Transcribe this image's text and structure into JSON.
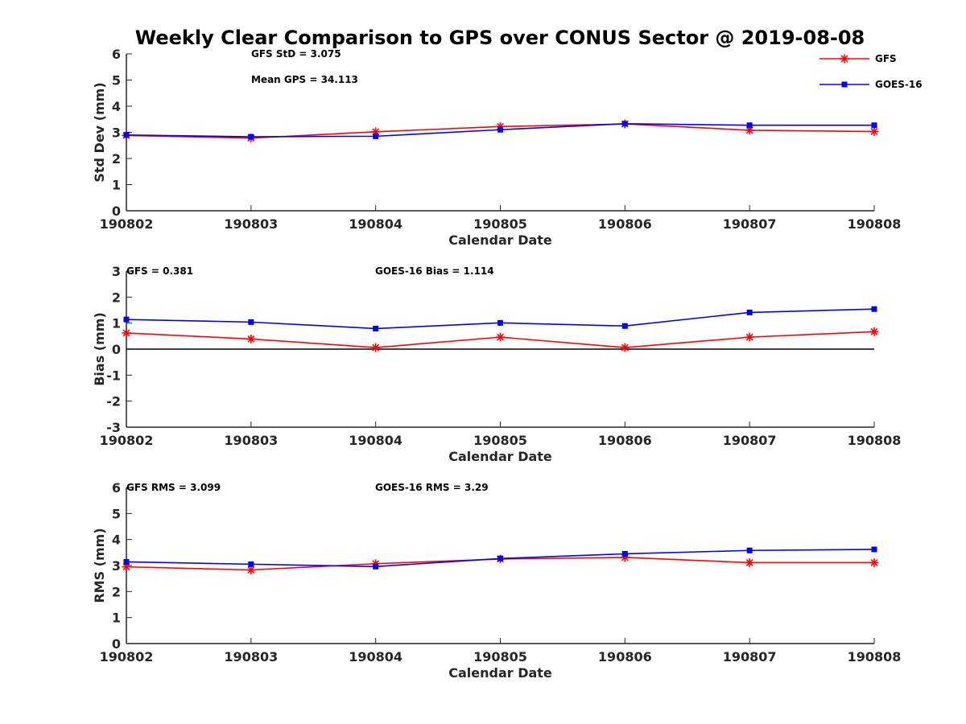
{
  "title": "Weekly Clear Comparison to GPS over CONUS Sector @ 2019-08-08",
  "colors": {
    "GFS": "#ff0000",
    "GOES-16": "#0000ff",
    "axis": "#262626",
    "zero_line": "#000000"
  },
  "legend": {
    "placement": "top-right",
    "entries": [
      {
        "name": "GFS",
        "marker": "asterisk",
        "color": "#ff0000"
      },
      {
        "name": "GOES-16",
        "marker": "square",
        "color": "#0000ff"
      }
    ]
  },
  "chart_data": [
    {
      "type": "line",
      "xlabel": "Calendar Date",
      "ylabel": "Std Dev (mm)",
      "categories": [
        "190802",
        "190803",
        "190804",
        "190805",
        "190806",
        "190807",
        "190808"
      ],
      "ylim": [
        0,
        6
      ],
      "yticks": [
        "0",
        "1",
        "2",
        "3",
        "4",
        "5",
        "6"
      ],
      "grid": false,
      "annotations": [
        "GFS StD = 3.075",
        "Mean GPS = 34.113"
      ],
      "series": [
        {
          "name": "GFS",
          "values": [
            2.88,
            2.78,
            3.02,
            3.22,
            3.32,
            3.08,
            3.03
          ]
        },
        {
          "name": "GOES-16",
          "values": [
            2.9,
            2.83,
            2.85,
            3.1,
            3.33,
            3.27,
            3.27
          ]
        }
      ]
    },
    {
      "type": "line",
      "xlabel": "Calendar Date",
      "ylabel": "Bias (mm)",
      "categories": [
        "190802",
        "190803",
        "190804",
        "190805",
        "190806",
        "190807",
        "190808"
      ],
      "ylim": [
        -3,
        3
      ],
      "yticks": [
        "-3",
        "-2",
        "-1",
        "0",
        "1",
        "2",
        "3"
      ],
      "grid": false,
      "zero_line": true,
      "annotations": [
        "GFS = 0.381",
        "GOES-16 Bias  = 1.114"
      ],
      "series": [
        {
          "name": "GFS",
          "values": [
            0.62,
            0.39,
            0.06,
            0.46,
            0.06,
            0.46,
            0.67
          ]
        },
        {
          "name": "GOES-16",
          "values": [
            1.14,
            1.04,
            0.79,
            1.01,
            0.89,
            1.41,
            1.54
          ]
        }
      ]
    },
    {
      "type": "line",
      "xlabel": "Calendar Date",
      "ylabel": "RMS (mm)",
      "categories": [
        "190802",
        "190803",
        "190804",
        "190805",
        "190806",
        "190807",
        "190808"
      ],
      "ylim": [
        0,
        6
      ],
      "yticks": [
        "0",
        "1",
        "2",
        "3",
        "4",
        "5",
        "6"
      ],
      "grid": false,
      "annotations": [
        "GFS RMS = 3.099",
        "GOES-16 RMS = 3.29"
      ],
      "series": [
        {
          "name": "GFS",
          "values": [
            2.95,
            2.83,
            3.07,
            3.25,
            3.31,
            3.11,
            3.11
          ]
        },
        {
          "name": "GOES-16",
          "values": [
            3.14,
            3.05,
            2.96,
            3.27,
            3.45,
            3.58,
            3.62
          ]
        }
      ]
    }
  ]
}
